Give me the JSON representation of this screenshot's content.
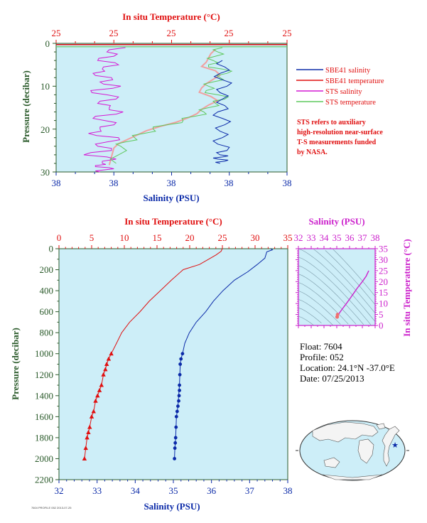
{
  "colors": {
    "plot_bg": "#cdeef8",
    "salinity": "#0b2aa8",
    "temperature": "#e01010",
    "sts_salinity": "#d41ad4",
    "sts_temperature": "#5fc85f",
    "sts_temp_pink": "#f0a0a0",
    "pressure_axis": "#2a5a2a",
    "ts_axis": "#cc22cc",
    "land": "#f2f2f2",
    "ocean": "#cdeef8"
  },
  "chart_data": [
    {
      "id": "near_surface",
      "type": "line",
      "top_axis_title": "In situ Temperature (°C)",
      "top_ticks": [
        "25",
        "25",
        "25",
        "25",
        "25"
      ],
      "bottom_axis_title": "Salinity (PSU)",
      "bottom_ticks": [
        "38",
        "38",
        "38",
        "38",
        "38"
      ],
      "ylabel": "Pressure (decibar)",
      "y_ticks": [
        "0",
        "10",
        "20",
        "30"
      ],
      "ylim": [
        0,
        30
      ],
      "legend_position": "right",
      "legend": [
        {
          "label": "SBE41 salinity",
          "color": "#0b2aa8"
        },
        {
          "label": "SBE41 temperature",
          "color": "#e01010"
        },
        {
          "label": "STS salinity",
          "color": "#d41ad4"
        },
        {
          "label": "STS temperature",
          "color": "#5fc85f"
        }
      ],
      "note": [
        "STS refers to auxiliary",
        "high-resolution near-surface",
        "T-S measurements funded",
        "by NASA."
      ],
      "series": [
        {
          "name": "STS salinity",
          "x_frac": [
            0.3,
            0.22,
            0.25,
            0.18,
            0.27,
            0.2,
            0.16,
            0.24,
            0.19,
            0.28,
            0.15,
            0.22,
            0.26,
            0.18,
            0.23,
            0.29,
            0.17,
            0.21,
            0.25,
            0.19,
            0.14,
            0.27,
            0.22,
            0.18,
            0.24,
            0.12,
            0.26,
            0.2,
            0.17,
            0.23,
            0.21,
            0.19
          ],
          "p": [
            1,
            2,
            3,
            4,
            5,
            6,
            7,
            8,
            9,
            10,
            11,
            12,
            13,
            14,
            15,
            16,
            17,
            18,
            19,
            20,
            21,
            22,
            23,
            24,
            25,
            26,
            27,
            28,
            28.5,
            29,
            29.5,
            30
          ]
        },
        {
          "name": "STS temperature",
          "x_frac": [
            0.72,
            0.7,
            0.69,
            0.68,
            0.66,
            0.72,
            0.74,
            0.71,
            0.68,
            0.66,
            0.65,
            0.7,
            0.73,
            0.69,
            0.66,
            0.64,
            0.6,
            0.55,
            0.48,
            0.42,
            0.38,
            0.34,
            0.3,
            0.28,
            0.27,
            0.26
          ],
          "p": [
            1,
            2,
            3,
            4,
            5,
            6,
            7,
            8,
            9,
            10,
            11,
            12,
            13,
            14,
            15,
            16,
            17,
            18,
            19,
            20,
            21,
            22,
            23,
            24,
            26,
            28
          ]
        },
        {
          "name": "SBE41 salinity",
          "x_frac": [
            0.72,
            0.73,
            0.71,
            0.72,
            0.74,
            0.71,
            0.72,
            0.73,
            0.7,
            0.72,
            0.73,
            0.71,
            0.72,
            0.7,
            0.74,
            0.71,
            0.72,
            0.7,
            0.73,
            0.71
          ],
          "p": [
            4,
            5.5,
            7,
            8.5,
            10,
            11.5,
            13,
            14.5,
            16,
            17.5,
            19,
            20.5,
            22,
            23.5,
            25,
            26,
            26.5,
            27,
            27.5,
            28
          ]
        }
      ]
    },
    {
      "id": "full_profile",
      "type": "line",
      "top_axis_title": "In situ Temperature (°C)",
      "top_ticks": [
        "0",
        "5",
        "10",
        "15",
        "20",
        "25",
        "30",
        "35"
      ],
      "xlim_top": [
        0,
        35
      ],
      "bottom_axis_title": "Salinity (PSU)",
      "bottom_ticks": [
        "32",
        "33",
        "34",
        "35",
        "36",
        "37",
        "38"
      ],
      "xlim_bottom": [
        32,
        38
      ],
      "ylabel": "Pressure (decibar)",
      "y_ticks": [
        "0",
        "200",
        "400",
        "600",
        "800",
        "1000",
        "1200",
        "1400",
        "1600",
        "1800",
        "2000",
        "2200"
      ],
      "ylim": [
        0,
        2200
      ],
      "series": [
        {
          "name": "temperature",
          "x": [
            25.0,
            24.9,
            24.8,
            24.0,
            21.5,
            19.0,
            17.2,
            15.5,
            13.8,
            12.4,
            10.8,
            9.6,
            8.8,
            8.0,
            7.6,
            7.3,
            7.1,
            6.8,
            6.5,
            6.2,
            5.9,
            5.6,
            5.3,
            5.0,
            4.7,
            4.5,
            4.3,
            4.1,
            3.9
          ],
          "p": [
            0,
            10,
            25,
            60,
            150,
            200,
            300,
            400,
            500,
            600,
            700,
            800,
            900,
            1000,
            1050,
            1100,
            1150,
            1200,
            1300,
            1350,
            1400,
            1450,
            1550,
            1600,
            1700,
            1750,
            1800,
            1900,
            2000
          ]
        },
        {
          "name": "salinity",
          "x": [
            37.55,
            37.6,
            37.45,
            37.4,
            37.2,
            36.95,
            36.6,
            36.3,
            36.05,
            35.85,
            35.6,
            35.42,
            35.3,
            35.24,
            35.2,
            35.18,
            35.17,
            35.16,
            35.15,
            35.14,
            35.12,
            35.1,
            35.08,
            35.07,
            35.06,
            35.05,
            35.04,
            35.03
          ],
          "p": [
            0,
            10,
            30,
            90,
            150,
            220,
            300,
            400,
            500,
            600,
            700,
            800,
            900,
            1000,
            1050,
            1100,
            1200,
            1300,
            1350,
            1400,
            1500,
            1550,
            1600,
            1700,
            1800,
            1850,
            1900,
            2000
          ]
        },
        {
          "name": "temperature_markers",
          "x": [
            8.0,
            7.6,
            7.3,
            7.1,
            6.8,
            6.5,
            6.2,
            5.9,
            5.6,
            5.3,
            5.0,
            4.7,
            4.5,
            4.3,
            4.1,
            3.9
          ],
          "p": [
            1000,
            1050,
            1100,
            1150,
            1200,
            1300,
            1350,
            1400,
            1450,
            1550,
            1600,
            1700,
            1750,
            1800,
            1900,
            2000
          ]
        },
        {
          "name": "salinity_markers",
          "x": [
            35.24,
            35.2,
            35.18,
            35.17,
            35.16,
            35.16,
            35.15,
            35.14,
            35.12,
            35.1,
            35.08,
            35.07,
            35.06,
            35.05,
            35.04,
            35.03
          ],
          "p": [
            1000,
            1050,
            1100,
            1200,
            1300,
            1350,
            1400,
            1450,
            1500,
            1550,
            1600,
            1700,
            1800,
            1850,
            1900,
            2000
          ]
        }
      ]
    },
    {
      "id": "ts_diagram",
      "type": "scatter",
      "top_axis_title": "Salinity (PSU)",
      "top_ticks": [
        "32",
        "33",
        "34",
        "35",
        "36",
        "37",
        "38"
      ],
      "xlim": [
        32,
        38
      ],
      "right_axis_title": "In situ Temperature (°C)",
      "right_ticks": [
        "0",
        "5",
        "10",
        "15",
        "20",
        "25",
        "30",
        "35"
      ],
      "ylim": [
        0,
        35
      ],
      "series": [
        {
          "name": "T-S curve",
          "salinity": [
            35.03,
            35.1,
            35.2,
            35.4,
            35.7,
            36.0,
            36.3,
            36.6,
            37.0,
            37.3,
            37.5
          ],
          "temperature": [
            3.9,
            4.7,
            5.6,
            7.3,
            9.6,
            12.0,
            14.5,
            17.0,
            20.0,
            22.5,
            25.0
          ]
        }
      ]
    }
  ],
  "float_info": {
    "float": "Float:  7604",
    "profile": "Profile:  052",
    "location": "Location:  24.1°N  -37.0°E",
    "date": "Date:  07/25/2013"
  },
  "footer_mark": "7604 PROFILE 052 2013-07-25"
}
